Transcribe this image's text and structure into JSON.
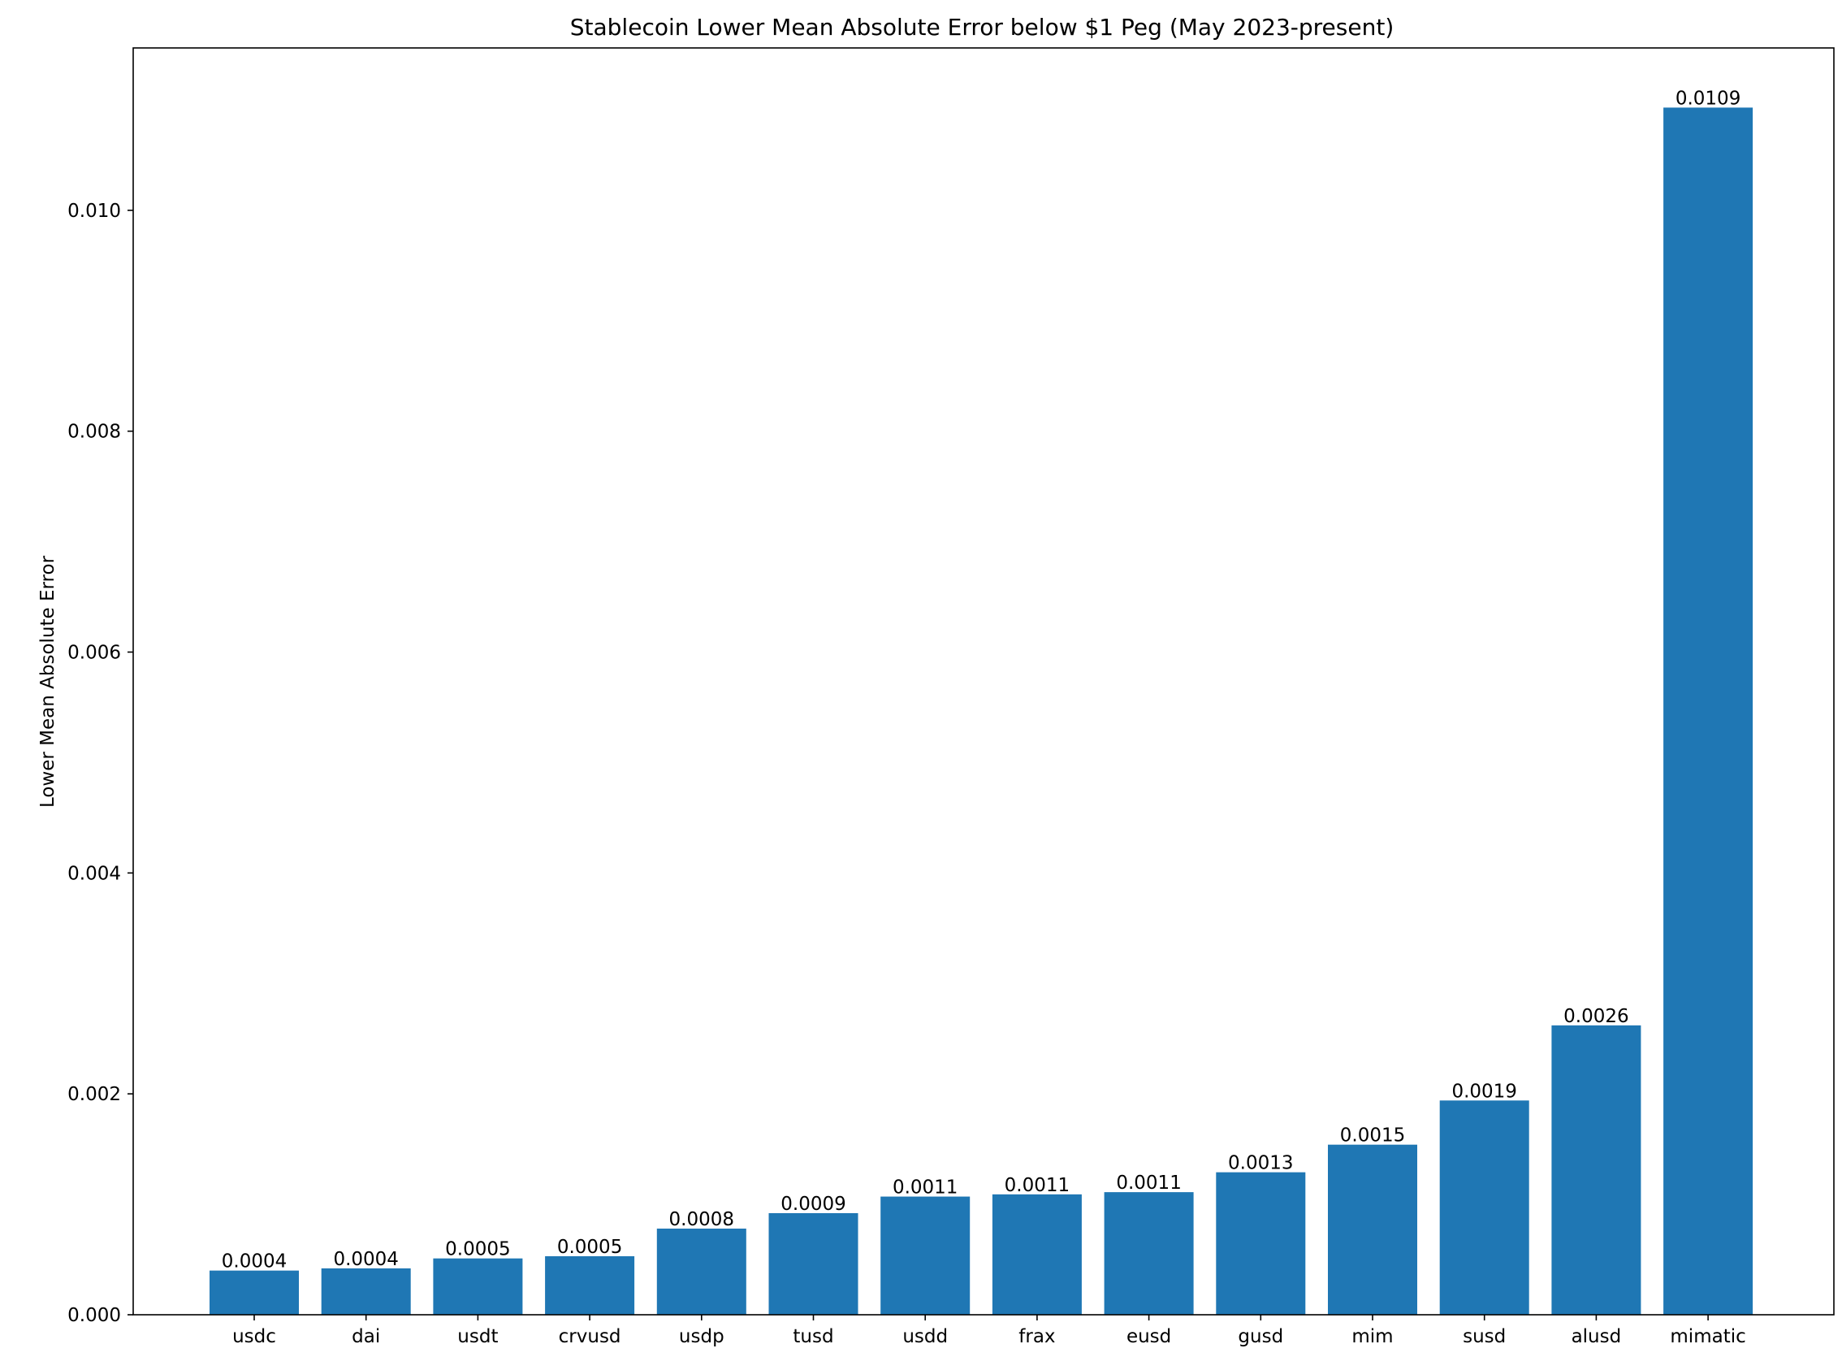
{
  "chart_data": {
    "type": "bar",
    "title": "Stablecoin Lower Mean Absolute Error below $1 Peg (May 2023-present)",
    "xlabel": "",
    "ylabel": "Lower Mean Absolute Error",
    "categories": [
      "usdc",
      "dai",
      "usdt",
      "crvusd",
      "usdp",
      "tusd",
      "usdd",
      "frax",
      "eusd",
      "gusd",
      "mim",
      "susd",
      "alusd",
      "mimatic"
    ],
    "values": [
      0.0004,
      0.00042,
      0.00051,
      0.00053,
      0.00078,
      0.00092,
      0.00107,
      0.00109,
      0.00111,
      0.00129,
      0.00154,
      0.00194,
      0.00262,
      0.01093
    ],
    "data_labels": [
      "0.0004",
      "0.0004",
      "0.0005",
      "0.0005",
      "0.0008",
      "0.0009",
      "0.0011",
      "0.0011",
      "0.0011",
      "0.0013",
      "0.0015",
      "0.0019",
      "0.0026",
      "0.0109"
    ],
    "ylim": [
      0,
      0.01147
    ],
    "yticks": [
      0.0,
      0.002,
      0.004,
      0.006,
      0.008,
      0.01
    ],
    "ytick_labels": [
      "0.000",
      "0.002",
      "0.004",
      "0.006",
      "0.008",
      "0.010"
    ],
    "grid": false,
    "bar_color": "#1f77b4"
  }
}
